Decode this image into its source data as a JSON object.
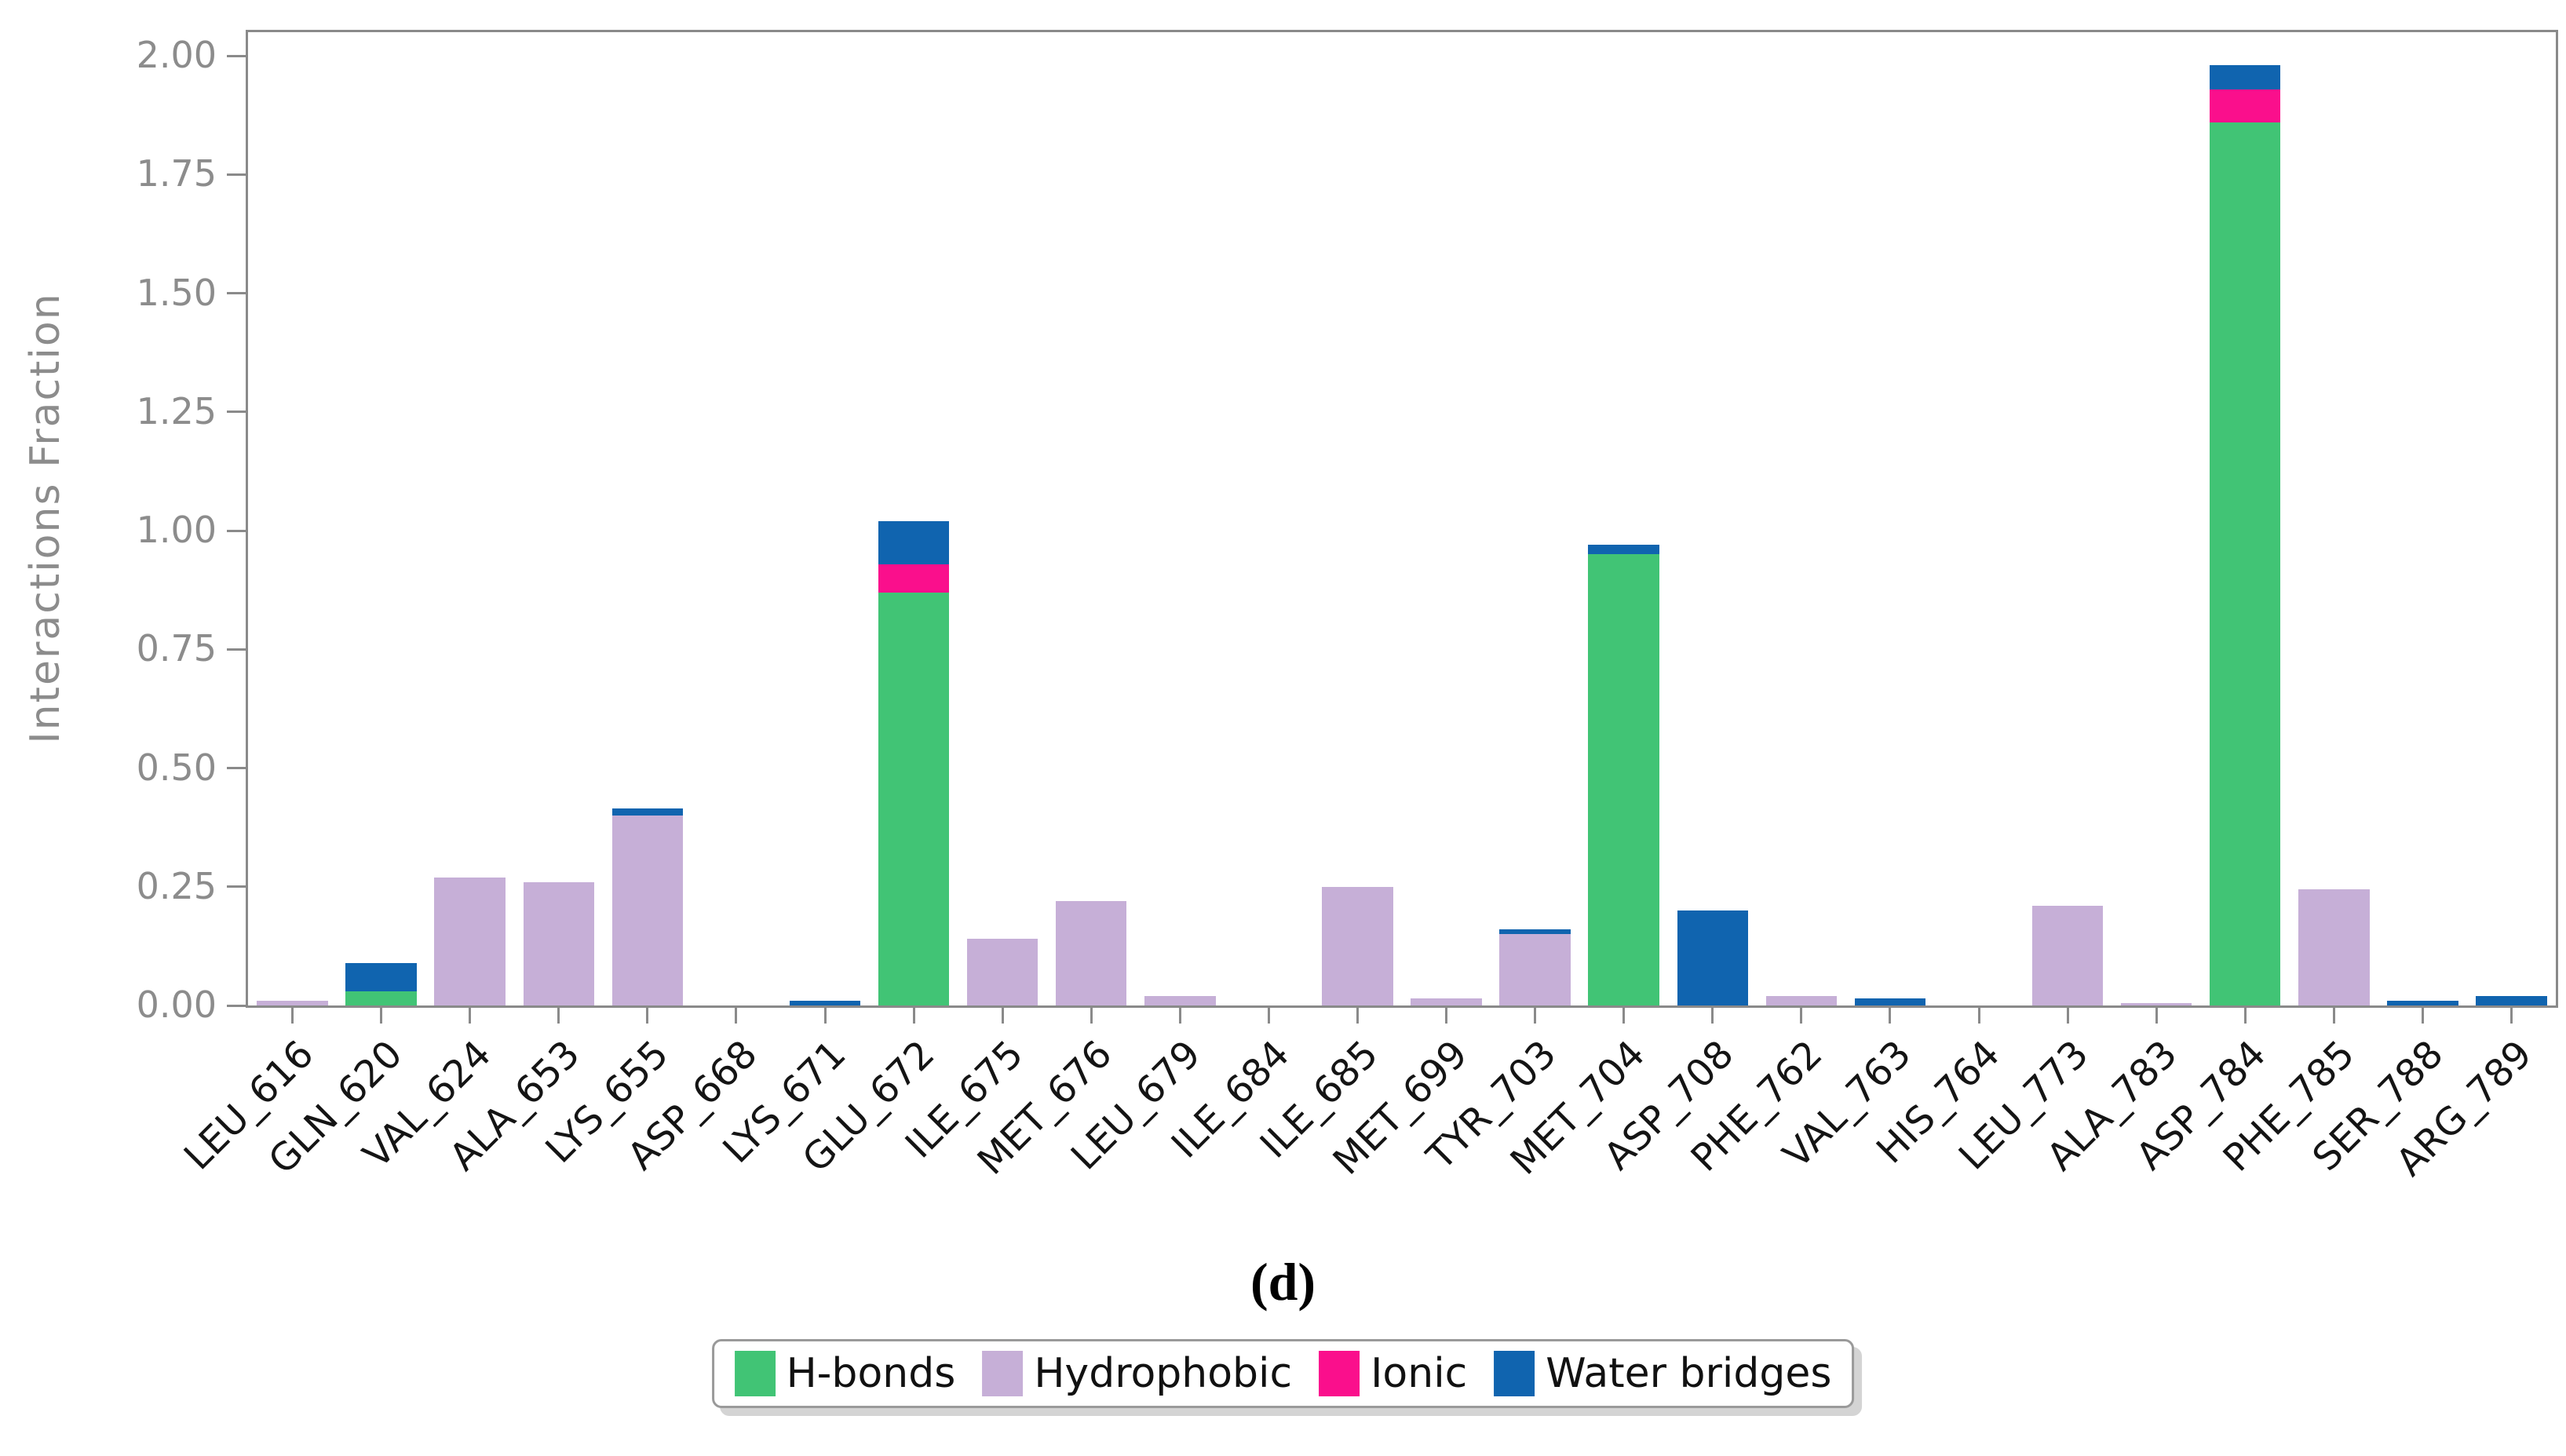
{
  "figure": {
    "caption": "(d)"
  },
  "chart_data": {
    "type": "bar",
    "stacked": true,
    "title": "",
    "xlabel": "",
    "ylabel": "Interactions Fraction",
    "ylim": [
      0,
      2.05
    ],
    "grid": false,
    "legend_position": "bottom-center",
    "yticks": [
      "0.00",
      "0.25",
      "0.50",
      "0.75",
      "1.00",
      "1.25",
      "1.50",
      "1.75",
      "2.00"
    ],
    "categories": [
      "LEU_616",
      "GLN_620",
      "VAL_624",
      "ALA_653",
      "LYS_655",
      "ASP_668",
      "LYS_671",
      "GLU_672",
      "ILE_675",
      "MET_676",
      "LEU_679",
      "ILE_684",
      "ILE_685",
      "MET_699",
      "TYR_703",
      "MET_704",
      "ASP_708",
      "PHE_762",
      "VAL_763",
      "HIS_764",
      "LEU_773",
      "ALA_783",
      "ASP_784",
      "PHE_785",
      "SER_788",
      "ARG_789"
    ],
    "series": [
      {
        "name": "H-bonds",
        "color": "#41c475",
        "values": [
          0,
          0.03,
          0,
          0,
          0,
          0,
          0,
          0.87,
          0,
          0,
          0,
          0,
          0,
          0,
          0,
          0.95,
          0,
          0,
          0,
          0,
          0,
          0,
          1.86,
          0,
          0,
          0
        ]
      },
      {
        "name": "Hydrophobic",
        "color": "#c6afd7",
        "values": [
          0.01,
          0,
          0.27,
          0.26,
          0.4,
          0,
          0,
          0,
          0.14,
          0.22,
          0.02,
          0,
          0.25,
          0.015,
          0.15,
          0,
          0,
          0.02,
          0,
          0,
          0.21,
          0.005,
          0,
          0.245,
          0,
          0
        ]
      },
      {
        "name": "Ionic",
        "color": "#fa0f8c",
        "values": [
          0,
          0,
          0,
          0,
          0,
          0,
          0,
          0.06,
          0,
          0,
          0,
          0,
          0,
          0,
          0,
          0,
          0,
          0,
          0,
          0,
          0,
          0,
          0.07,
          0,
          0,
          0
        ]
      },
      {
        "name": "Water bridges",
        "color": "#1064af",
        "values": [
          0,
          0.06,
          0,
          0,
          0.015,
          0,
          0.01,
          0.09,
          0,
          0,
          0,
          0,
          0,
          0,
          0.01,
          0.02,
          0.2,
          0,
          0.015,
          0,
          0,
          0,
          0.05,
          0,
          0.01,
          0.02
        ]
      }
    ],
    "colors": {
      "axis": "#8a8a8a",
      "y_tick_label": "#8c8c8c",
      "x_tick_label": "#141414",
      "background": "#ffffff"
    }
  }
}
